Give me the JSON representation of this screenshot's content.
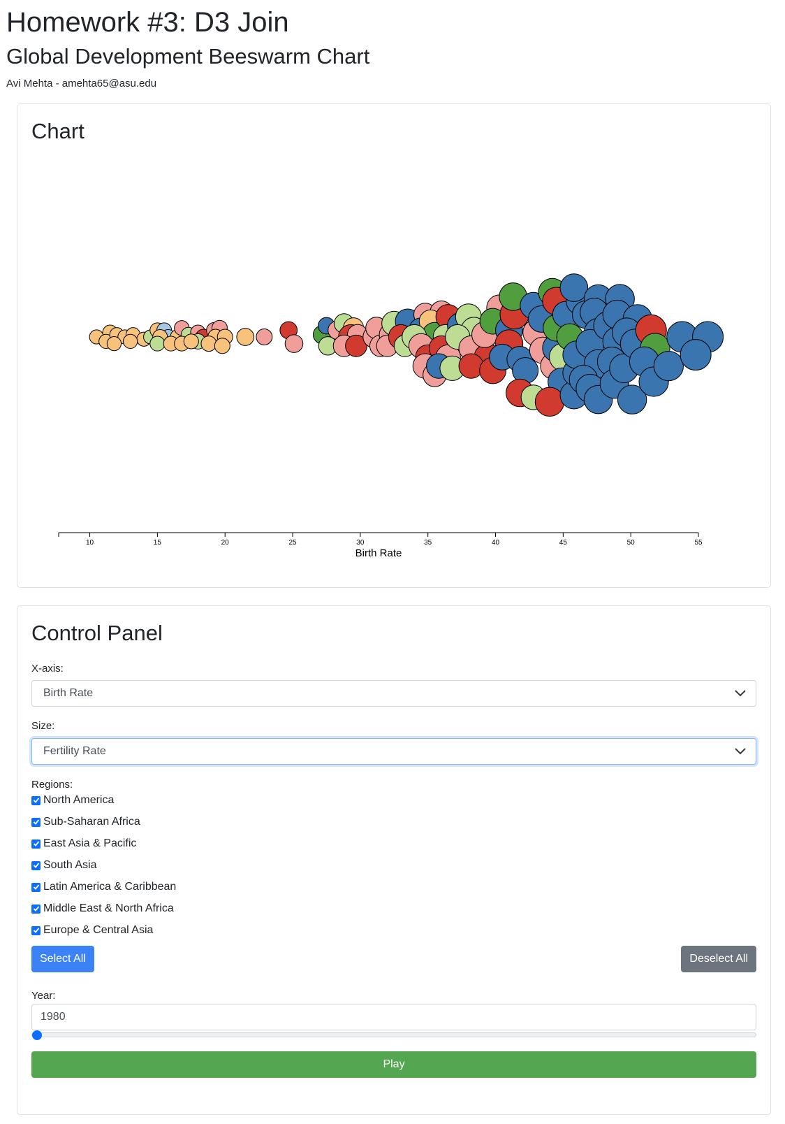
{
  "header": {
    "title": "Homework #3: D3 Join",
    "subtitle": "Global Development Beeswarm Chart",
    "author": "Avi Mehta - amehta65@asu.edu"
  },
  "chart_card": {
    "title": "Chart"
  },
  "chart_data": {
    "type": "scatter",
    "variant": "beeswarm",
    "xlabel": "Birth Rate",
    "ticks": [
      10,
      15,
      20,
      25,
      30,
      35,
      40,
      45,
      50,
      55
    ],
    "xlim": [
      7.7,
      55
    ],
    "region_colors": {
      "ssa": "#3a75af",
      "sa": "#d03a2f",
      "mena": "#519e3e",
      "lac": "#f09e9a",
      "eap": "#bddc94",
      "eca": "#f6c27c",
      "na": "#a8c7e2"
    },
    "points": [
      {
        "x": 10.5,
        "y": 0,
        "r": 2.3,
        "g": "eca"
      },
      {
        "x": 11.5,
        "y": -2,
        "r": 2.4,
        "g": "eca"
      },
      {
        "x": 11.2,
        "y": 2,
        "r": 2.3,
        "g": "eca"
      },
      {
        "x": 12.0,
        "y": -1,
        "r": 2.3,
        "g": "eca"
      },
      {
        "x": 12.6,
        "y": 0,
        "r": 2.3,
        "g": "eca"
      },
      {
        "x": 13.2,
        "y": -1,
        "r": 2.3,
        "g": "eca"
      },
      {
        "x": 14.0,
        "y": 1,
        "r": 2.3,
        "g": "eca"
      },
      {
        "x": 13.0,
        "y": 2,
        "r": 2.3,
        "g": "eca"
      },
      {
        "x": 11.8,
        "y": 3,
        "r": 2.3,
        "g": "eca"
      },
      {
        "x": 14.5,
        "y": 0,
        "r": 2.3,
        "g": "eap"
      },
      {
        "x": 15.0,
        "y": -3,
        "r": 2.4,
        "g": "eca"
      },
      {
        "x": 15.5,
        "y": -3,
        "r": 2.4,
        "g": "na"
      },
      {
        "x": 15.8,
        "y": 0,
        "r": 2.4,
        "g": "na"
      },
      {
        "x": 15.2,
        "y": 0,
        "r": 2.4,
        "g": "eca"
      },
      {
        "x": 16.5,
        "y": 0,
        "r": 2.4,
        "g": "eca"
      },
      {
        "x": 16.8,
        "y": -4,
        "r": 2.4,
        "g": "lac"
      },
      {
        "x": 17.3,
        "y": -1,
        "r": 2.4,
        "g": "eap"
      },
      {
        "x": 18.0,
        "y": -2,
        "r": 2.4,
        "g": "lac"
      },
      {
        "x": 18.4,
        "y": 0,
        "r": 2.5,
        "g": "sa"
      },
      {
        "x": 19.2,
        "y": -3,
        "r": 2.5,
        "g": "lac"
      },
      {
        "x": 19.6,
        "y": -4,
        "r": 2.5,
        "g": "lac"
      },
      {
        "x": 18.0,
        "y": 2,
        "r": 2.5,
        "g": "eap"
      },
      {
        "x": 19.3,
        "y": 0,
        "r": 2.5,
        "g": "eca"
      },
      {
        "x": 20.0,
        "y": 0,
        "r": 2.5,
        "g": "eca"
      },
      {
        "x": 15.0,
        "y": 3,
        "r": 2.4,
        "g": "eap"
      },
      {
        "x": 16.0,
        "y": 3,
        "r": 2.4,
        "g": "eca"
      },
      {
        "x": 16.8,
        "y": 3,
        "r": 2.4,
        "g": "eca"
      },
      {
        "x": 17.5,
        "y": 2,
        "r": 2.4,
        "g": "eca"
      },
      {
        "x": 18.8,
        "y": 3,
        "r": 2.5,
        "g": "eca"
      },
      {
        "x": 19.8,
        "y": 4,
        "r": 2.5,
        "g": "eca"
      },
      {
        "x": 21.5,
        "y": 0,
        "r": 2.8,
        "g": "eca"
      },
      {
        "x": 22.9,
        "y": 0,
        "r": 2.6,
        "g": "lac"
      },
      {
        "x": 24.7,
        "y": -3,
        "r": 2.8,
        "g": "sa"
      },
      {
        "x": 25.1,
        "y": 3,
        "r": 2.9,
        "g": "lac"
      },
      {
        "x": 27.2,
        "y": -1,
        "r": 3.0,
        "g": "mena"
      },
      {
        "x": 27.5,
        "y": -5,
        "r": 2.7,
        "g": "ssa"
      },
      {
        "x": 27.6,
        "y": 4,
        "r": 3.0,
        "g": "eap"
      },
      {
        "x": 28.3,
        "y": -3,
        "r": 3.0,
        "g": "lac"
      },
      {
        "x": 28.8,
        "y": -6,
        "r": 3.2,
        "g": "eap"
      },
      {
        "x": 29.5,
        "y": -4,
        "r": 3.3,
        "g": "eca"
      },
      {
        "x": 29.3,
        "y": 0,
        "r": 4.0,
        "g": "sa"
      },
      {
        "x": 29.8,
        "y": -1,
        "r": 3.3,
        "g": "lac"
      },
      {
        "x": 28.8,
        "y": 4,
        "r": 3.5,
        "g": "lac"
      },
      {
        "x": 29.7,
        "y": 4,
        "r": 3.5,
        "g": "sa"
      },
      {
        "x": 31.0,
        "y": 0,
        "r": 3.5,
        "g": "lac"
      },
      {
        "x": 31.2,
        "y": -4,
        "r": 3.5,
        "g": "lac"
      },
      {
        "x": 31.5,
        "y": 4,
        "r": 3.5,
        "g": "lac"
      },
      {
        "x": 32.2,
        "y": -1,
        "r": 3.5,
        "g": "lac"
      },
      {
        "x": 32.5,
        "y": -6,
        "r": 4.0,
        "g": "eap"
      },
      {
        "x": 32.0,
        "y": 4,
        "r": 3.5,
        "g": "lac"
      },
      {
        "x": 33.5,
        "y": -7,
        "r": 4.0,
        "g": "ssa"
      },
      {
        "x": 33.0,
        "y": 0,
        "r": 4.0,
        "g": "sa"
      },
      {
        "x": 33.3,
        "y": 4,
        "r": 3.5,
        "g": "eap"
      },
      {
        "x": 34.8,
        "y": -10,
        "r": 3.7,
        "g": "lac"
      },
      {
        "x": 36.0,
        "y": -11,
        "r": 3.7,
        "g": "lac"
      },
      {
        "x": 34.5,
        "y": -3,
        "r": 4.0,
        "g": "ssa"
      },
      {
        "x": 35.2,
        "y": -7,
        "r": 3.7,
        "g": "eca"
      },
      {
        "x": 35.5,
        "y": -1,
        "r": 4.0,
        "g": "mena"
      },
      {
        "x": 36.5,
        "y": -9,
        "r": 4.0,
        "g": "sa"
      },
      {
        "x": 36.3,
        "y": 0,
        "r": 4.0,
        "g": "eap"
      },
      {
        "x": 34.0,
        "y": 0,
        "r": 4.0,
        "g": "eap"
      },
      {
        "x": 34.5,
        "y": 4,
        "r": 4.0,
        "g": "lac"
      },
      {
        "x": 35.0,
        "y": 9,
        "r": 4.0,
        "g": "sa"
      },
      {
        "x": 34.8,
        "y": 13,
        "r": 4.0,
        "g": "lac"
      },
      {
        "x": 35.5,
        "y": 17,
        "r": 3.8,
        "g": "lac"
      },
      {
        "x": 36.0,
        "y": 5,
        "r": 4.0,
        "g": "sa"
      },
      {
        "x": 36.5,
        "y": 9,
        "r": 4.0,
        "g": "lac"
      },
      {
        "x": 35.8,
        "y": 13,
        "r": 4.0,
        "g": "ssa"
      },
      {
        "x": 36.8,
        "y": 14,
        "r": 4.0,
        "g": "eap"
      },
      {
        "x": 37.4,
        "y": -5,
        "r": 4.2,
        "g": "ssa"
      },
      {
        "x": 38.0,
        "y": -9,
        "r": 4.2,
        "g": "eap"
      },
      {
        "x": 38.4,
        "y": -3,
        "r": 4.2,
        "g": "eap"
      },
      {
        "x": 37.2,
        "y": 0,
        "r": 4.0,
        "g": "eap"
      },
      {
        "x": 38.2,
        "y": 5,
        "r": 4.0,
        "g": "lac"
      },
      {
        "x": 39.4,
        "y": 9,
        "r": 4.3,
        "g": "sa"
      },
      {
        "x": 38.2,
        "y": 13,
        "r": 4.0,
        "g": "sa"
      },
      {
        "x": 39.8,
        "y": 15,
        "r": 4.3,
        "g": "sa"
      },
      {
        "x": 39.2,
        "y": -1,
        "r": 4.2,
        "g": "lac"
      },
      {
        "x": 40.3,
        "y": -13,
        "r": 4.2,
        "g": "lac"
      },
      {
        "x": 39.8,
        "y": -7,
        "r": 4.2,
        "g": "mena"
      },
      {
        "x": 41.0,
        "y": -3,
        "r": 4.4,
        "g": "ssa"
      },
      {
        "x": 41.4,
        "y": -10,
        "r": 4.7,
        "g": "sa"
      },
      {
        "x": 41.3,
        "y": -18,
        "r": 4.5,
        "g": "mena"
      },
      {
        "x": 41.0,
        "y": 3,
        "r": 4.5,
        "g": "sa"
      },
      {
        "x": 40.5,
        "y": 9,
        "r": 4.2,
        "g": "ssa"
      },
      {
        "x": 41.8,
        "y": 10,
        "r": 4.2,
        "g": "ssa"
      },
      {
        "x": 42.2,
        "y": 15,
        "r": 4.2,
        "g": "ssa"
      },
      {
        "x": 41.8,
        "y": 25,
        "r": 4.5,
        "g": "sa"
      },
      {
        "x": 42.8,
        "y": 27,
        "r": 4.0,
        "g": "eap"
      },
      {
        "x": 43.0,
        "y": -2,
        "r": 4.3,
        "g": "lac"
      },
      {
        "x": 43.5,
        "y": 6,
        "r": 4.3,
        "g": "lac"
      },
      {
        "x": 42.8,
        "y": -14,
        "r": 4.3,
        "g": "ssa"
      },
      {
        "x": 43.4,
        "y": -8,
        "r": 4.3,
        "g": "ssa"
      },
      {
        "x": 44.3,
        "y": 13,
        "r": 4.3,
        "g": "lac"
      },
      {
        "x": 44.2,
        "y": -20,
        "r": 4.5,
        "g": "mena"
      },
      {
        "x": 44.5,
        "y": -16,
        "r": 4.5,
        "g": "sa"
      },
      {
        "x": 44.5,
        "y": 5,
        "r": 4.5,
        "g": "ssa"
      },
      {
        "x": 45.0,
        "y": 9,
        "r": 4.5,
        "g": "eap"
      },
      {
        "x": 44.5,
        "y": -4,
        "r": 4.3,
        "g": "mena"
      },
      {
        "x": 45.2,
        "y": -10,
        "r": 4.3,
        "g": "ssa"
      },
      {
        "x": 45.5,
        "y": 0,
        "r": 4.3,
        "g": "mena"
      },
      {
        "x": 44.9,
        "y": 20,
        "r": 4.5,
        "g": "ssa"
      },
      {
        "x": 44.0,
        "y": 29,
        "r": 4.7,
        "g": "sa"
      },
      {
        "x": 45.8,
        "y": 26,
        "r": 4.5,
        "g": "ssa"
      },
      {
        "x": 46.0,
        "y": 16,
        "r": 4.5,
        "g": "ssa"
      },
      {
        "x": 46.0,
        "y": 8,
        "r": 4.5,
        "g": "ssa"
      },
      {
        "x": 46.2,
        "y": -16,
        "r": 4.3,
        "g": "ssa"
      },
      {
        "x": 46.7,
        "y": -10,
        "r": 4.5,
        "g": "ssa"
      },
      {
        "x": 45.8,
        "y": -22,
        "r": 4.5,
        "g": "ssa"
      },
      {
        "x": 47.6,
        "y": -17,
        "r": 4.6,
        "g": "ssa"
      },
      {
        "x": 47.3,
        "y": -11,
        "r": 4.6,
        "g": "ssa"
      },
      {
        "x": 47.6,
        "y": -2,
        "r": 4.6,
        "g": "ssa"
      },
      {
        "x": 47.0,
        "y": 3,
        "r": 4.6,
        "g": "ssa"
      },
      {
        "x": 47.6,
        "y": 12,
        "r": 4.6,
        "g": "ssa"
      },
      {
        "x": 46.5,
        "y": 19,
        "r": 4.6,
        "g": "ssa"
      },
      {
        "x": 47.0,
        "y": 23,
        "r": 4.6,
        "g": "ssa"
      },
      {
        "x": 47.6,
        "y": 28,
        "r": 4.6,
        "g": "ssa"
      },
      {
        "x": 48.3,
        "y": -5,
        "r": 4.6,
        "g": "ssa"
      },
      {
        "x": 49.2,
        "y": -17,
        "r": 4.7,
        "g": "ssa"
      },
      {
        "x": 49.0,
        "y": -10,
        "r": 4.7,
        "g": "ssa"
      },
      {
        "x": 49.0,
        "y": 2,
        "r": 4.7,
        "g": "ssa"
      },
      {
        "x": 48.6,
        "y": 11,
        "r": 4.7,
        "g": "ssa"
      },
      {
        "x": 48.8,
        "y": 21,
        "r": 4.7,
        "g": "ssa"
      },
      {
        "x": 49.5,
        "y": 14,
        "r": 4.7,
        "g": "ssa"
      },
      {
        "x": 50.1,
        "y": 28,
        "r": 4.7,
        "g": "ssa"
      },
      {
        "x": 50.5,
        "y": -8,
        "r": 4.7,
        "g": "ssa"
      },
      {
        "x": 49.7,
        "y": -2,
        "r": 4.7,
        "g": "ssa"
      },
      {
        "x": 50.3,
        "y": 3,
        "r": 4.7,
        "g": "ssa"
      },
      {
        "x": 51.5,
        "y": -3,
        "r": 5.0,
        "g": "sa"
      },
      {
        "x": 51.8,
        "y": 5,
        "r": 4.8,
        "g": "mena"
      },
      {
        "x": 51.0,
        "y": 11,
        "r": 4.8,
        "g": "ssa"
      },
      {
        "x": 51.7,
        "y": 20,
        "r": 4.8,
        "g": "ssa"
      },
      {
        "x": 52.8,
        "y": 13,
        "r": 4.8,
        "g": "ssa"
      },
      {
        "x": 53.8,
        "y": 0,
        "r": 5.0,
        "g": "ssa"
      },
      {
        "x": 55.7,
        "y": 0,
        "r": 5.0,
        "g": "ssa"
      },
      {
        "x": 54.8,
        "y": 8,
        "r": 5.0,
        "g": "ssa"
      }
    ]
  },
  "control_panel": {
    "title": "Control Panel",
    "xaxis_label": "X-axis:",
    "xaxis_value": "Birth Rate",
    "size_label": "Size:",
    "size_value": "Fertility Rate",
    "regions_label": "Regions:",
    "regions": [
      "North America",
      "Sub-Saharan Africa",
      "East Asia & Pacific",
      "South Asia",
      "Latin America & Caribbean",
      "Middle East & North Africa",
      "Europe & Central Asia"
    ],
    "select_all": "Select All",
    "deselect_all": "Deselect All",
    "year_label": "Year:",
    "year_value": "1980",
    "year_slider": {
      "value": 1980
    },
    "play": "Play"
  }
}
